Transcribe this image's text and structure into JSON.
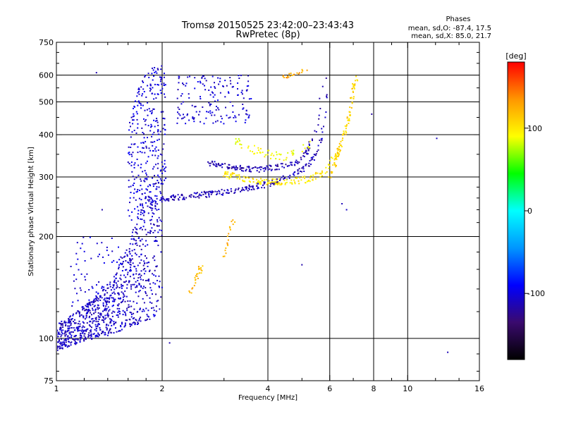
{
  "chart_data": {
    "type": "scatter",
    "title": "Tromsø 20150525 23:42:00–23:43:43",
    "subtitle": "RwPretec (8p)",
    "xlabel": "Frequency [MHz]",
    "ylabel": "Stationary phase Virtual Height [km]",
    "x_scale": "log",
    "y_scale": "log",
    "xlim": [
      1,
      16
    ],
    "ylim": [
      75,
      750
    ],
    "x_ticks": [
      1,
      2,
      4,
      6,
      8,
      10,
      16
    ],
    "y_ticks": [
      75,
      100,
      200,
      300,
      400,
      500,
      600,
      750
    ],
    "grid": true,
    "stats": {
      "heading": "Phases",
      "line_o": "mean, sd,O: -87.4, 17.5",
      "line_x": "mean, sd,X: 85.0, 21.7"
    },
    "colorbar": {
      "label": "[deg]",
      "range": [
        -180,
        180
      ],
      "ticks": [
        100,
        0,
        -100
      ],
      "colors": [
        "#000000",
        "#3a0a6e",
        "#0000ff",
        "#0096ff",
        "#00ffff",
        "#00ff00",
        "#ffff00",
        "#ff9600",
        "#ff0000"
      ]
    },
    "series": [
      {
        "kind": "band",
        "f": [
          1.0,
          1.2,
          1.45,
          1.6,
          1.75,
          1.9,
          2.0
        ],
        "h_low": [
          92,
          98,
          103,
          107,
          110,
          115,
          120
        ],
        "h_high": [
          110,
          125,
          150,
          190,
          250,
          300,
          320
        ],
        "phase": -108,
        "density": 900
      },
      {
        "kind": "band",
        "f": [
          1.6,
          1.75,
          1.9,
          2.05
        ],
        "h_low": [
          200,
          220,
          250,
          270
        ],
        "h_high": [
          430,
          600,
          640,
          640
        ],
        "phase": -102,
        "density": 320
      },
      {
        "kind": "curve",
        "f": [
          2.0,
          2.3,
          2.8,
          3.5,
          4.2,
          4.8,
          5.3,
          5.6,
          5.8,
          5.9
        ],
        "h": [
          258,
          262,
          268,
          278,
          290,
          305,
          330,
          370,
          450,
          600
        ],
        "spread": 0.02,
        "phase": -112,
        "density": 220
      },
      {
        "kind": "curve",
        "f": [
          2.7,
          3.2,
          3.7,
          4.2,
          4.8,
          5.2,
          5.5,
          5.75
        ],
        "h": [
          330,
          320,
          315,
          320,
          330,
          360,
          420,
          560
        ],
        "spread": 0.018,
        "phase": -115,
        "density": 150
      },
      {
        "kind": "curve",
        "f": [
          3.0,
          3.5,
          4.0,
          4.6,
          5.2,
          5.8,
          6.3,
          6.8,
          7.2
        ],
        "h": [
          305,
          295,
          290,
          290,
          295,
          310,
          350,
          450,
          600
        ],
        "spread": 0.022,
        "phase": 100,
        "density": 170
      },
      {
        "kind": "curve",
        "f": [
          3.2,
          3.7,
          4.2,
          4.6,
          5.0,
          5.3
        ],
        "h": [
          380,
          360,
          345,
          345,
          360,
          380
        ],
        "spread": 0.03,
        "phase": 90,
        "density": 60
      },
      {
        "kind": "curve",
        "f": [
          6.0,
          6.4,
          6.8,
          7.1
        ],
        "h": [
          300,
          360,
          450,
          600
        ],
        "spread": 0.03,
        "phase": 110,
        "density": 70
      },
      {
        "kind": "cloud",
        "f_range": [
          2.2,
          3.6
        ],
        "h_range": [
          430,
          600
        ],
        "phase": -105,
        "density": 160
      },
      {
        "kind": "cloud",
        "f_range": [
          1.1,
          1.6
        ],
        "h_range": [
          120,
          200
        ],
        "phase": -100,
        "density": 80
      },
      {
        "kind": "curve",
        "f": [
          2.4,
          2.5,
          2.6
        ],
        "h": [
          135,
          150,
          165
        ],
        "spread": 0.03,
        "phase": 120,
        "density": 25
      },
      {
        "kind": "curve",
        "f": [
          3.0,
          3.1,
          3.2
        ],
        "h": [
          170,
          200,
          230
        ],
        "spread": 0.03,
        "phase": 125,
        "density": 18
      },
      {
        "kind": "curve",
        "f": [
          4.4,
          4.8,
          5.2
        ],
        "h": [
          590,
          610,
          620
        ],
        "spread": 0.02,
        "phase": 130,
        "density": 20
      },
      {
        "kind": "scatter",
        "f": [
          1.3,
          1.35,
          6.5,
          6.7,
          5.0,
          12.1,
          13.0,
          7.9,
          1.5,
          2.1
        ],
        "h": [
          610,
          240,
          250,
          240,
          165,
          390,
          91,
          460,
          125,
          97
        ],
        "phase": -110
      }
    ]
  }
}
